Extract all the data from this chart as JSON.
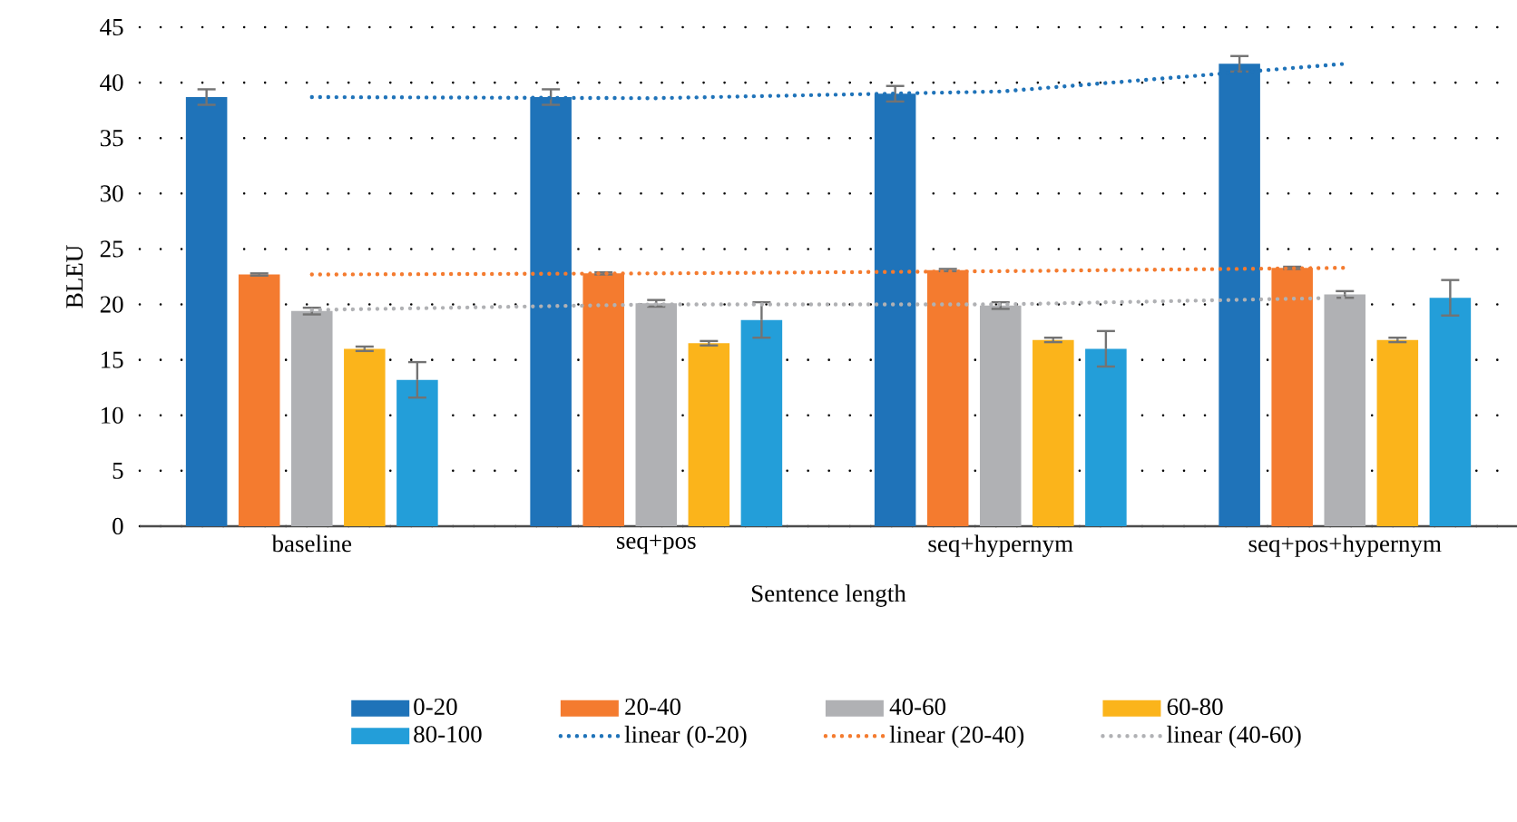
{
  "chart_data": {
    "type": "bar",
    "xlabel": "Sentence length",
    "ylabel": "BLEU",
    "categories": [
      "baseline",
      "seq+pos",
      "seq+hypernym",
      "seq+pos+hypernym"
    ],
    "ylim": [
      0,
      45
    ],
    "yticks": [
      0,
      5,
      10,
      15,
      20,
      25,
      30,
      35,
      40,
      45
    ],
    "grid": "y",
    "legend": "bottom",
    "series": [
      {
        "name": "0-20",
        "color": "#1f73b9",
        "values": [
          38.7,
          38.7,
          39.0,
          41.7
        ],
        "errors": [
          0.7,
          0.7,
          0.7,
          0.7
        ]
      },
      {
        "name": "20-40",
        "color": "#f47b2f",
        "values": [
          22.7,
          22.8,
          23.1,
          23.3
        ],
        "errors": [
          0.1,
          0.1,
          0.1,
          0.1
        ]
      },
      {
        "name": "40-60",
        "color": "#b0b1b4",
        "values": [
          19.4,
          20.1,
          19.9,
          20.9
        ],
        "errors": [
          0.3,
          0.3,
          0.3,
          0.3
        ]
      },
      {
        "name": "60-80",
        "color": "#fbb41b",
        "values": [
          16.0,
          16.5,
          16.8,
          16.8
        ],
        "errors": [
          0.2,
          0.2,
          0.2,
          0.2
        ]
      },
      {
        "name": "80-100",
        "color": "#239ed9",
        "values": [
          13.2,
          18.6,
          16.0,
          20.6
        ],
        "errors": [
          1.6,
          1.6,
          1.6,
          1.6
        ]
      },
      {
        "name": "linear (0-20)",
        "color": "#1f73b9",
        "type": "line",
        "line_style": "dotted",
        "values": [
          38.7,
          38.6,
          39.2,
          41.7
        ]
      },
      {
        "name": "linear (20-40)",
        "color": "#f47b2f",
        "type": "line",
        "line_style": "dotted",
        "values": [
          22.7,
          22.8,
          23.0,
          23.3
        ]
      },
      {
        "name": "linear (40-60)",
        "color": "#b0b1b4",
        "type": "line",
        "line_style": "dotted",
        "values": [
          19.5,
          20.0,
          20.0,
          20.6
        ]
      }
    ]
  }
}
